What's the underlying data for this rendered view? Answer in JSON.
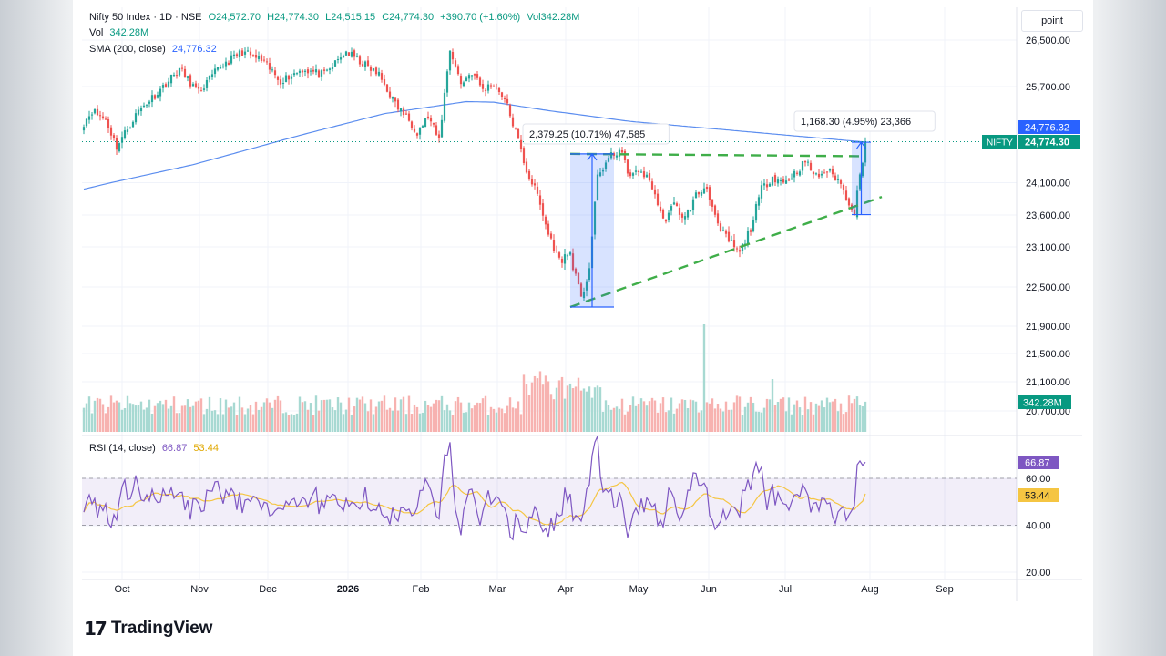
{
  "legend": {
    "title": "Nifty 50 Index · 1D · NSE",
    "open": "O24,572.70",
    "high": "H24,774.30",
    "low": "L24,515.15",
    "close": "C24,774.30",
    "change": "+390.70 (+1.60%)",
    "vol_inline": "Vol342.28M",
    "vol_label": "Vol",
    "vol_value": "342.28M",
    "sma_label": "SMA (200, close)",
    "sma_value": "24,776.32",
    "rsi_label": "RSI (14, close)",
    "rsi_value": "66.87",
    "rsi_ma_value": "53.44"
  },
  "unit_label": "point",
  "brand": {
    "logo": "17",
    "name": "TradingView"
  },
  "colors": {
    "up": "#26a69a",
    "down": "#ef5350",
    "sma": "#5b8def",
    "rsi": "#7e57c2",
    "rsi_ma": "#f5c542",
    "trend": "#3fae49",
    "measure": "#2962ff",
    "nifty_tag": "#089981"
  },
  "chart_data": [
    {
      "type": "candlestick",
      "title": "Nifty 50 Index · 1D · NSE",
      "x": [
        "Oct",
        "Nov",
        "Dec",
        "2026",
        "Feb",
        "Mar",
        "Apr",
        "May",
        "Jun",
        "Jul",
        "Aug",
        "Sep"
      ],
      "y_ticks": [
        "26,500.00",
        "25,700.00",
        "24,100.00",
        "23,600.00",
        "23,100.00",
        "22,500.00",
        "21,900.00",
        "21,500.00",
        "21,100.00",
        "20,700.00"
      ],
      "price_tags": {
        "sma": "24,776.32",
        "last": "24,774.30",
        "symbol": "NIFTY",
        "volume": "342.28M"
      },
      "anchors": [
        [
          0,
          25100
        ],
        [
          3,
          25300
        ],
        [
          8,
          25150
        ],
        [
          12,
          24700
        ],
        [
          20,
          25300
        ],
        [
          28,
          25650
        ],
        [
          35,
          26000
        ],
        [
          42,
          25600
        ],
        [
          50,
          26050
        ],
        [
          58,
          26300
        ],
        [
          65,
          26150
        ],
        [
          72,
          25800
        ],
        [
          80,
          26000
        ],
        [
          88,
          25900
        ],
        [
          96,
          26300
        ],
        [
          102,
          26100
        ],
        [
          108,
          25900
        ],
        [
          114,
          25400
        ],
        [
          118,
          25200
        ],
        [
          122,
          24950
        ],
        [
          126,
          25200
        ],
        [
          130,
          24800
        ],
        [
          134,
          26350
        ],
        [
          138,
          25750
        ],
        [
          142,
          25950
        ],
        [
          146,
          25650
        ],
        [
          150,
          25750
        ],
        [
          154,
          25500
        ],
        [
          158,
          24950
        ],
        [
          162,
          24300
        ],
        [
          166,
          23900
        ],
        [
          170,
          23300
        ],
        [
          174,
          22900
        ],
        [
          178,
          23000
        ],
        [
          182,
          22300
        ],
        [
          185,
          22800
        ],
        [
          188,
          24200
        ],
        [
          192,
          24500
        ],
        [
          196,
          24650
        ],
        [
          200,
          24200
        ],
        [
          204,
          24300
        ],
        [
          208,
          24050
        ],
        [
          212,
          23500
        ],
        [
          216,
          23750
        ],
        [
          220,
          23550
        ],
        [
          224,
          23900
        ],
        [
          228,
          24050
        ],
        [
          232,
          23400
        ],
        [
          236,
          23200
        ],
        [
          240,
          23000
        ],
        [
          244,
          23400
        ],
        [
          248,
          24000
        ],
        [
          252,
          24200
        ],
        [
          256,
          24100
        ],
        [
          260,
          24250
        ],
        [
          264,
          24450
        ],
        [
          268,
          24200
        ],
        [
          272,
          24300
        ],
        [
          276,
          24150
        ],
        [
          280,
          23800
        ],
        [
          282,
          23650
        ],
        [
          286,
          24774.3
        ]
      ],
      "measurements": [
        {
          "label": "2,379.25 (10.71%) 47,585",
          "from": 22200,
          "to": 24580
        },
        {
          "label": "1,168.30 (4.95%) 23,366",
          "from": 23606,
          "to": 24774.3
        }
      ],
      "trendlines": [
        {
          "from": [
            178,
            24580
          ],
          "to": [
            286,
            24540
          ]
        },
        {
          "from": [
            178,
            22200
          ],
          "to": [
            292,
            23880
          ]
        }
      ]
    },
    {
      "type": "line",
      "title": "SMA (200, close)",
      "series": [
        {
          "name": "SMA (200, close)",
          "anchors": [
            [
              0,
              24000
            ],
            [
              40,
              24400
            ],
            [
              80,
              24900
            ],
            [
              110,
              25250
            ],
            [
              140,
              25450
            ],
            [
              150,
              25440
            ],
            [
              170,
              25300
            ],
            [
              200,
              25120
            ],
            [
              240,
              24960
            ],
            [
              286,
              24776.32
            ]
          ]
        }
      ]
    },
    {
      "type": "bar",
      "title": "Vol",
      "last_value": "342.28M"
    },
    {
      "type": "line",
      "title": "RSI (14, close)",
      "y_ticks": [
        "60.00",
        "40.00",
        "20.00"
      ],
      "ylim": [
        20,
        80
      ],
      "band": [
        40,
        60
      ],
      "series": [
        {
          "name": "RSI (14, close)",
          "last": "66.87"
        },
        {
          "name": "RSI MA",
          "last": "53.44"
        }
      ]
    }
  ]
}
